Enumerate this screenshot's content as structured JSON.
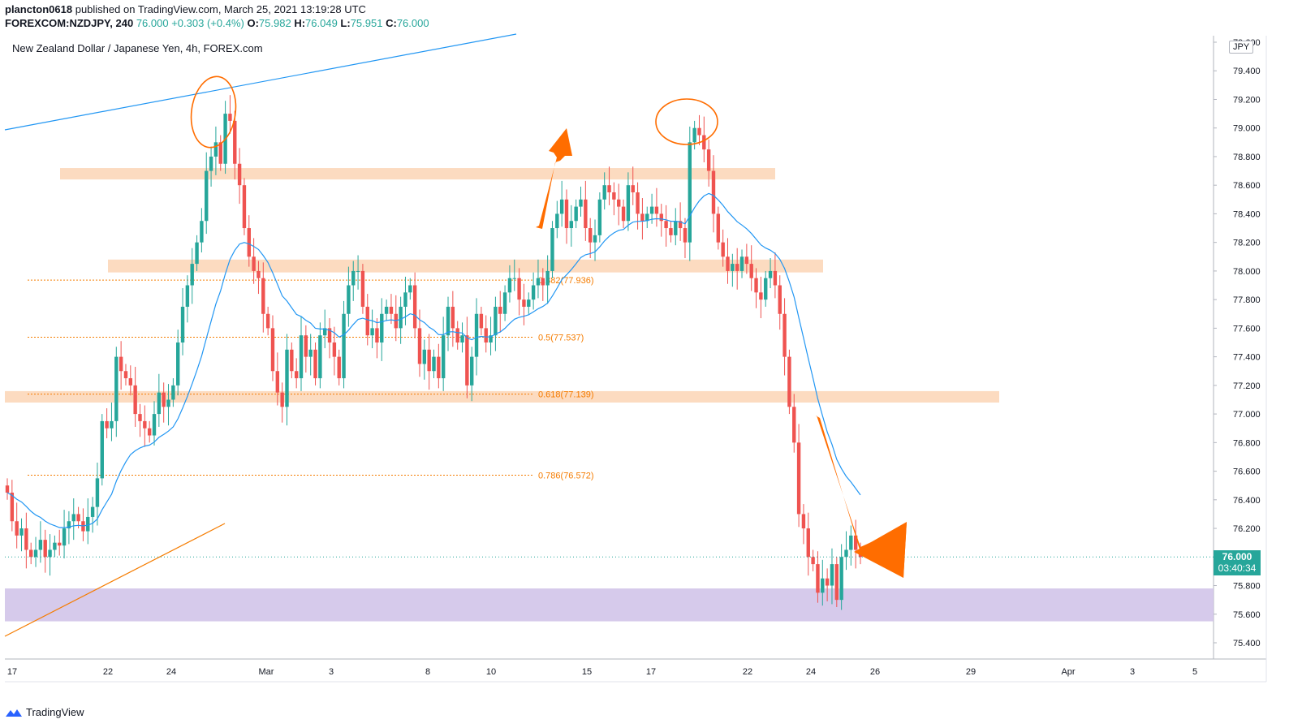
{
  "header": {
    "author": "plancton0618",
    "published_text": "published on TradingView.com, March 25, 2021 13:19:28 UTC",
    "symbol": "FOREXCOM:NZDJPY, 240",
    "last": "76.000",
    "change": "+0.303 (+0.4%)",
    "o_label": "O:",
    "o": "75.982",
    "h_label": "H:",
    "h": "76.049",
    "l_label": "L:",
    "l": "75.951",
    "c_label": "C:",
    "c": "76.000"
  },
  "pair_title": "New Zealand Dollar / Japanese Yen, 4h, FOREX.com",
  "currency_badge": "JPY",
  "price_tag": {
    "price": "76.000",
    "countdown": "03:40:34"
  },
  "footer": {
    "brand": "TradingView"
  },
  "colors": {
    "up": "#26a69a",
    "down": "#ef5350",
    "ema": "#2196f3",
    "zone": "#fcd5b5",
    "support_zone": "#d1c4e9",
    "arrow": "#ff6d00",
    "fib": "#f57c00",
    "trend": "#2196f3",
    "trend2": "#f57c00"
  },
  "chart_data": {
    "type": "candlestick",
    "title": "New Zealand Dollar / Japanese Yen, 4h, FOREX.com",
    "yaxis_ticks": [
      "75.400",
      "75.600",
      "75.800",
      "76.000",
      "76.200",
      "76.400",
      "76.600",
      "76.800",
      "77.000",
      "77.200",
      "77.400",
      "77.600",
      "77.800",
      "78.000",
      "78.200",
      "78.400",
      "78.600",
      "78.800",
      "79.000",
      "79.200",
      "79.400",
      "79.600"
    ],
    "ylim": [
      75.25,
      79.65
    ],
    "xaxis_ticks": [
      "17",
      "22",
      "24",
      "Mar",
      "3",
      "8",
      "10",
      "15",
      "17",
      "22",
      "24",
      "26",
      "29",
      "Apr",
      "3",
      "5"
    ],
    "fib_levels": [
      {
        "label": "0.382(77.936)",
        "value": 77.936
      },
      {
        "label": "0.5(77.537)",
        "value": 77.537
      },
      {
        "label": "0.618(77.139)",
        "value": 77.139
      },
      {
        "label": "0.786(76.572)",
        "value": 76.572
      }
    ],
    "resistance_zones": [
      {
        "from": 78.64,
        "to": 78.72
      },
      {
        "from": 77.99,
        "to": 78.08
      },
      {
        "from": 77.08,
        "to": 77.16
      }
    ],
    "support_zone": {
      "from": 75.55,
      "to": 75.78
    },
    "last_price": 76.0,
    "closes": [
      76.45,
      76.25,
      76.15,
      76.2,
      76.05,
      76.0,
      76.05,
      76.12,
      76.0,
      76.05,
      76.1,
      76.08,
      76.2,
      76.25,
      76.3,
      76.25,
      76.18,
      76.28,
      76.35,
      76.55,
      76.95,
      76.9,
      76.95,
      77.4,
      77.3,
      77.25,
      77.2,
      77.0,
      76.95,
      76.9,
      76.85,
      77.0,
      77.15,
      77.05,
      77.1,
      77.2,
      77.5,
      77.75,
      77.9,
      78.05,
      78.2,
      78.35,
      78.7,
      78.8,
      78.9,
      78.75,
      79.1,
      79.05,
      78.75,
      78.6,
      78.3,
      78.1,
      78.0,
      77.95,
      77.7,
      77.6,
      77.3,
      77.15,
      77.05,
      77.45,
      77.3,
      77.25,
      77.55,
      77.4,
      77.45,
      77.25,
      77.55,
      77.6,
      77.5,
      77.4,
      77.25,
      77.7,
      77.9,
      78.0,
      78.0,
      77.75,
      77.55,
      77.6,
      77.5,
      77.7,
      77.75,
      77.7,
      77.6,
      77.75,
      77.85,
      77.9,
      77.6,
      77.35,
      77.45,
      77.3,
      77.4,
      77.25,
      77.55,
      77.75,
      77.6,
      77.5,
      77.55,
      77.2,
      77.4,
      77.7,
      77.6,
      77.5,
      77.55,
      77.75,
      77.7,
      77.85,
      77.95,
      77.95,
      77.8,
      77.75,
      77.8,
      77.9,
      77.95,
      77.9,
      78.0,
      78.3,
      78.4,
      78.5,
      78.3,
      78.35,
      78.45,
      78.5,
      78.3,
      78.2,
      78.25,
      78.5,
      78.6,
      78.55,
      78.5,
      78.45,
      78.35,
      78.6,
      78.55,
      78.4,
      78.35,
      78.4,
      78.45,
      78.4,
      78.35,
      78.3,
      78.25,
      78.35,
      78.3,
      78.2,
      78.9,
      79.0,
      78.95,
      78.85,
      78.7,
      78.4,
      78.2,
      78.1,
      78.0,
      78.05,
      78.0,
      78.1,
      78.05,
      77.95,
      77.85,
      77.8,
      77.95,
      78.0,
      77.9,
      77.7,
      77.4,
      77.05,
      76.8,
      76.3,
      76.2,
      76.0,
      75.95,
      75.75,
      75.85,
      75.8,
      75.95,
      75.7,
      76.0,
      76.05,
      76.15,
      76.05,
      76.0
    ]
  }
}
